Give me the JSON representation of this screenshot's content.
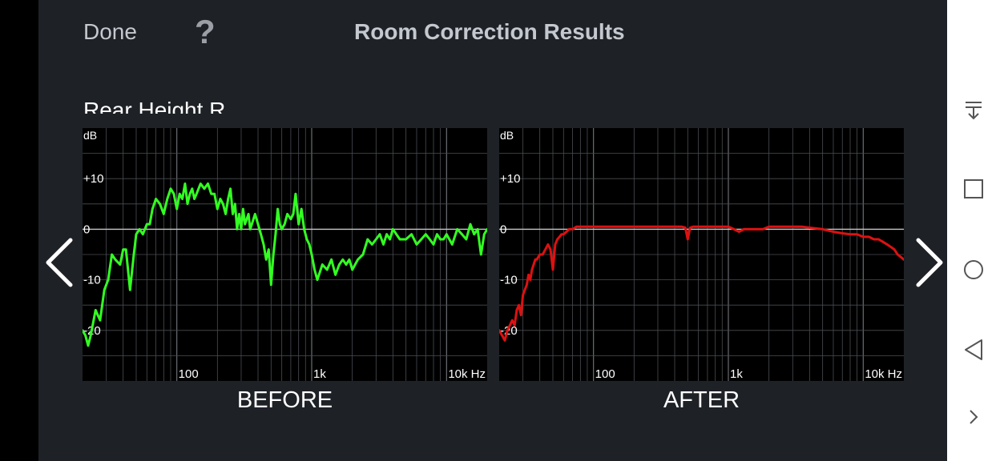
{
  "header": {
    "done_label": "Done",
    "help_icon": "help-icon",
    "help_glyph": "?",
    "title": "Room Correction Results"
  },
  "channel_name": "Rear Height R",
  "colors": {
    "app_bg": "#1e2126",
    "chart_bg": "#000000",
    "grid": "#4a4d52",
    "zero_line": "#c8c8c8",
    "before_curve": "#33ff22",
    "after_curve": "#dd1111"
  },
  "nav_arrows": {
    "prev": "chevron-left-icon",
    "next": "chevron-right-icon"
  },
  "system_nav": [
    "notification-pull-icon",
    "recents-square-icon",
    "home-circle-icon",
    "back-triangle-icon",
    "expand-chevron-icon"
  ],
  "chart_data": [
    {
      "type": "line",
      "title": "BEFORE",
      "ylabel": "dB",
      "x_scale": "log",
      "xlim": [
        20,
        20000
      ],
      "ylim": [
        -30,
        20
      ],
      "y_ticks": [
        {
          "v": 10,
          "label": "+10"
        },
        {
          "v": 0,
          "label": "0"
        },
        {
          "v": -10,
          "label": "-10"
        },
        {
          "v": -20,
          "label": "-20"
        }
      ],
      "x_ticks": [
        {
          "v": 100,
          "label": "100"
        },
        {
          "v": 1000,
          "label": "1k"
        },
        {
          "v": 10000,
          "label": "10k Hz"
        }
      ],
      "grid": true,
      "series": [
        {
          "color": "#33ff22",
          "x": [
            20,
            21,
            22,
            23,
            25,
            27,
            29,
            31,
            33,
            35,
            38,
            40,
            42,
            45,
            48,
            50,
            53,
            56,
            60,
            63,
            66,
            70,
            75,
            80,
            85,
            90,
            95,
            100,
            105,
            110,
            115,
            120,
            125,
            130,
            135,
            140,
            150,
            160,
            170,
            180,
            190,
            200,
            210,
            220,
            230,
            240,
            250,
            260,
            270,
            280,
            290,
            300,
            310,
            320,
            330,
            340,
            350,
            360,
            380,
            400,
            420,
            440,
            460,
            480,
            500,
            520,
            540,
            560,
            580,
            600,
            630,
            660,
            700,
            730,
            760,
            800,
            840,
            880,
            920,
            960,
            1000,
            1050,
            1100,
            1200,
            1300,
            1400,
            1500,
            1600,
            1700,
            1800,
            1900,
            2000,
            2200,
            2400,
            2600,
            2800,
            3000,
            3200,
            3400,
            3600,
            3800,
            4000,
            4500,
            5000,
            5500,
            6000,
            6500,
            7000,
            7500,
            8000,
            8500,
            9000,
            9500,
            10000,
            11000,
            12000,
            13000,
            14000,
            15000,
            16000,
            17000,
            18000,
            19000,
            20000
          ],
          "y": [
            -20,
            -21,
            -23,
            -21,
            -16,
            -18,
            -12,
            -10,
            -5,
            -6,
            -7,
            -4,
            -4,
            -12,
            -5,
            -1,
            0,
            -1,
            1,
            1,
            4,
            6,
            5,
            3,
            6,
            8,
            7,
            4,
            7,
            6,
            9,
            5,
            7,
            8,
            6,
            7,
            9,
            8,
            9,
            7,
            7,
            4,
            6,
            5,
            3,
            6,
            8,
            3,
            5,
            0,
            3,
            0,
            4,
            1,
            2,
            3,
            0,
            1,
            3,
            1,
            -1,
            -3,
            -6,
            -4,
            -11,
            -5,
            -1,
            4,
            1,
            0,
            1,
            3,
            2,
            3,
            7,
            1,
            4,
            0,
            -2,
            -3,
            -5,
            -8,
            -10,
            -7,
            -8,
            -6,
            -9,
            -7,
            -6,
            -7,
            -6,
            -8,
            -6,
            -5,
            -2,
            -3,
            -2,
            -1,
            -3,
            -1,
            -2,
            0,
            -2,
            -2,
            -1,
            -3,
            -2,
            -1,
            -2,
            -3,
            -1,
            -2,
            -2,
            -1,
            -3,
            0,
            -1,
            -2,
            1,
            -1,
            0,
            -5,
            -1,
            0
          ]
        }
      ]
    },
    {
      "type": "line",
      "title": "AFTER",
      "ylabel": "dB",
      "x_scale": "log",
      "xlim": [
        20,
        20000
      ],
      "ylim": [
        -30,
        20
      ],
      "y_ticks": [
        {
          "v": 10,
          "label": "+10"
        },
        {
          "v": 0,
          "label": "0"
        },
        {
          "v": -10,
          "label": "-10"
        },
        {
          "v": -20,
          "label": "-20"
        }
      ],
      "x_ticks": [
        {
          "v": 100,
          "label": "100"
        },
        {
          "v": 1000,
          "label": "1k"
        },
        {
          "v": 10000,
          "label": "10k Hz"
        }
      ],
      "grid": true,
      "series": [
        {
          "color": "#dd1111",
          "x": [
            20,
            21,
            22,
            23,
            24,
            25,
            26,
            27,
            28,
            29,
            30,
            31,
            32,
            33,
            34,
            35,
            36,
            37,
            38,
            40,
            42,
            44,
            46,
            48,
            50,
            52,
            54,
            56,
            58,
            60,
            63,
            66,
            70,
            75,
            80,
            85,
            90,
            100,
            120,
            150,
            200,
            250,
            300,
            350,
            400,
            450,
            480,
            500,
            520,
            550,
            600,
            700,
            800,
            900,
            1000,
            1100,
            1200,
            1300,
            1500,
            1800,
            2000,
            2500,
            3000,
            3500,
            4000,
            5000,
            6000,
            7000,
            8000,
            9000,
            10000,
            11000,
            12000,
            13000,
            14000,
            15000,
            16000,
            17000,
            18000,
            19000,
            20000
          ],
          "y": [
            -20,
            -21,
            -22,
            -20,
            -19,
            -18,
            -19,
            -16,
            -15,
            -17,
            -13,
            -12,
            -11,
            -9,
            -10,
            -8,
            -7,
            -6,
            -6,
            -5,
            -5,
            -4,
            -3,
            -4,
            -8,
            -3,
            -2,
            -1.5,
            -1,
            -1,
            -0.5,
            0,
            0,
            0.5,
            0.5,
            0.5,
            0.5,
            0.5,
            0.5,
            0.5,
            0.5,
            0.5,
            0.5,
            0.5,
            0.5,
            0.5,
            0.3,
            -2,
            0.3,
            0.5,
            0.5,
            0.5,
            0.5,
            0.5,
            0.5,
            0,
            -0.5,
            0,
            0,
            0,
            0.5,
            0.5,
            0.5,
            0.5,
            0.3,
            0,
            -0.5,
            -0.8,
            -1,
            -1,
            -1.5,
            -1.5,
            -2,
            -2,
            -2.5,
            -3,
            -3.5,
            -4,
            -5,
            -5.5,
            -6
          ]
        }
      ]
    }
  ],
  "captions": {
    "before": "BEFORE",
    "after": "AFTER"
  }
}
